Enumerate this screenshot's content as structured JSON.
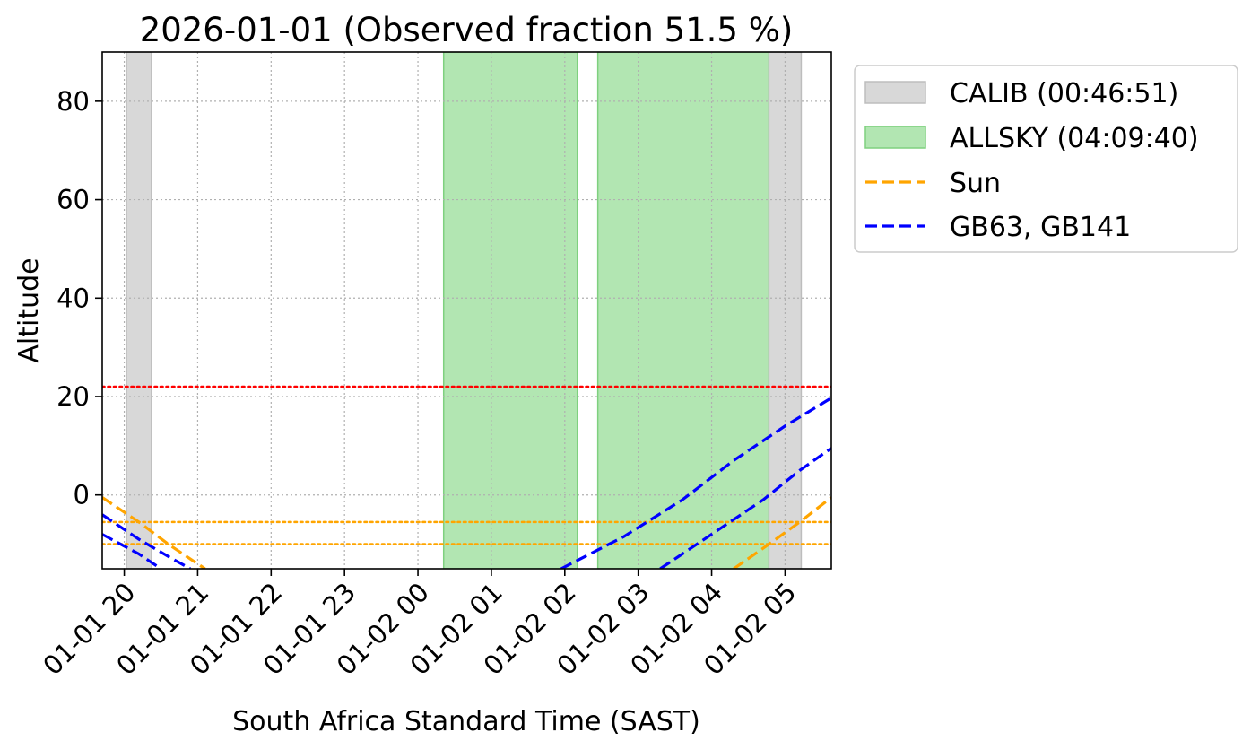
{
  "chart_data": {
    "type": "line",
    "title": "2026-01-01 (Observed fraction 51.5 %)",
    "xlabel": "South Africa Standard Time (SAST)",
    "ylabel": "Altitude",
    "xlim_hours": [
      19.7,
      29.63
    ],
    "ylim": [
      -15,
      90
    ],
    "grid": true,
    "x_tick_values": [
      20,
      21,
      22,
      23,
      24,
      25,
      26,
      27,
      28,
      29
    ],
    "x_tick_labels": [
      "01-01 20",
      "01-01 21",
      "01-01 22",
      "01-01 23",
      "01-02 00",
      "01-02 01",
      "01-02 02",
      "01-02 03",
      "01-02 04",
      "01-02 05"
    ],
    "y_ticks": [
      0,
      20,
      40,
      60,
      80
    ],
    "spans": [
      {
        "group": "calib",
        "start": 20.03,
        "end": 20.37
      },
      {
        "group": "allsky",
        "start": 24.35,
        "end": 26.17
      },
      {
        "group": "allsky",
        "start": 26.45,
        "end": 28.78
      },
      {
        "group": "calib",
        "start": 28.78,
        "end": 29.22
      }
    ],
    "hlines": [
      {
        "y": 22,
        "color": "#ff0000",
        "style": "dotted"
      },
      {
        "y": -5.5,
        "color": "#ffa500",
        "style": "dotted"
      },
      {
        "y": -10,
        "color": "#ffa500",
        "style": "dotted"
      }
    ],
    "curves": [
      {
        "group": "sun",
        "color": "#ffa500",
        "points": [
          [
            19.7,
            -0.5
          ],
          [
            20.2,
            -5.5
          ],
          [
            20.6,
            -10
          ],
          [
            21.1,
            -15
          ]
        ]
      },
      {
        "group": "sun",
        "color": "#ffa500",
        "points": [
          [
            28.3,
            -15
          ],
          [
            28.78,
            -10
          ],
          [
            29.2,
            -5.5
          ],
          [
            29.63,
            -0.5
          ]
        ]
      },
      {
        "group": "targets",
        "color": "#0000ff",
        "points": [
          [
            19.7,
            -4
          ],
          [
            20.2,
            -9
          ],
          [
            20.6,
            -12.5
          ],
          [
            20.9,
            -15
          ]
        ]
      },
      {
        "group": "targets",
        "color": "#0000ff",
        "points": [
          [
            25.95,
            -15
          ],
          [
            26.8,
            -8.5
          ],
          [
            27.6,
            -1
          ],
          [
            28.3,
            7
          ],
          [
            29.0,
            14
          ],
          [
            29.63,
            19.7
          ]
        ]
      },
      {
        "group": "targets",
        "color": "#0000ff",
        "points": [
          [
            19.7,
            -8
          ],
          [
            20.2,
            -12
          ],
          [
            20.5,
            -15
          ]
        ]
      },
      {
        "group": "targets",
        "color": "#0000ff",
        "points": [
          [
            27.3,
            -15
          ],
          [
            28.0,
            -8
          ],
          [
            28.7,
            -1
          ],
          [
            29.2,
            5
          ],
          [
            29.63,
            9.5
          ]
        ]
      }
    ],
    "legend": {
      "placement": "outside-upper-right",
      "entries": [
        {
          "label": "CALIB (00:46:51)",
          "kind": "patch",
          "face": "#d8d8d8",
          "edge": "#bdbdbd"
        },
        {
          "label": "ALLSKY (04:09:40)",
          "kind": "patch",
          "face": "#b2e6b2",
          "edge": "#7fd07f"
        },
        {
          "label": "Sun",
          "kind": "line",
          "color": "#ffa500"
        },
        {
          "label": "GB63, GB141",
          "kind": "line",
          "color": "#0000ff"
        }
      ]
    },
    "colors": {
      "calib_face": "#d8d8d8",
      "calib_edge": "#bdbdbd",
      "allsky_face": "#b2e6b2",
      "allsky_edge": "#7fd07f",
      "sun": "#ffa500",
      "targets": "#0000ff",
      "limit": "#ff0000",
      "grid": "#b0b0b0"
    }
  }
}
